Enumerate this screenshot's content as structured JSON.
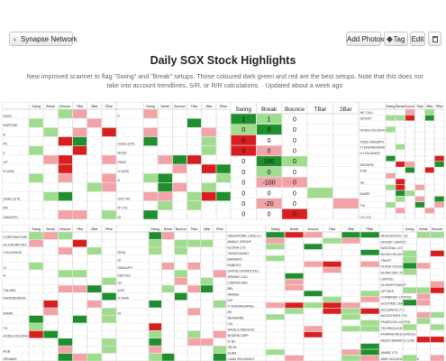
{
  "toolbar": {
    "back_label": "Synapse Network",
    "add_photos_label": "Add Photos",
    "tag_label": "Tag",
    "edit_label": "Edit"
  },
  "page": {
    "title": "Daily SGX Stock Highlights",
    "description": "New improved scanner to flag \"Swing\" and \"Break\" setups. Those coloured dark green and red are the best setups. Note that this does not take into account trendlines, S/R, or R/R calculations.  · Updated about a week ago"
  },
  "colors": {
    "dark_green": "#1f8f2e",
    "light_green": "#9fdc8e",
    "dark_red": "#d81f1f",
    "light_red": "#f2a3a8"
  },
  "collage": {
    "headers": [
      "Swing",
      "Break",
      "Bounce",
      "TBar",
      "2Bar",
      "PBar"
    ],
    "center_values": [
      [
        "1",
        "1",
        "0"
      ],
      [
        "0",
        "0",
        "0"
      ],
      [
        "0",
        "0",
        "0"
      ],
      [
        "0",
        "0",
        "0"
      ],
      [
        "0",
        "100",
        "0"
      ],
      [
        "0",
        "0",
        "0"
      ],
      [
        "0",
        "-100",
        "0"
      ],
      [
        "0",
        "0",
        "0"
      ],
      [
        "0",
        "-20",
        "0"
      ],
      [
        "0",
        "0",
        "0"
      ]
    ],
    "left_top_labels": [
      "PASS",
      "NWSTME",
      "D",
      "PC",
      "C",
      "UP",
      "IX ASIA",
      "",
      "",
      "(Index (STI)",
      "RN",
      "SINGAPO"
    ],
    "mid_top_labels": [
      "P",
      "",
      "",
      "(Index (STI)",
      "RCES",
      "PASS",
      "IX ASIA",
      "D",
      "",
      "SVO HO",
      "IP LTD.",
      "ID"
    ],
    "right_top_labels": [
      "NE CALL",
      "GROUP",
      "",
      "HONG HOLDING",
      "",
      "TEAD SINGAPO",
      "TI ENGINEERING",
      "H HOLDINGS",
      "",
      "DEEARN",
      "FOR",
      "",
      "SIL",
      "",
      "INARE",
      "",
      "TUI",
      "",
      "LS LTD."
    ],
    "left_bottom_labels": [
      "CORPORATION",
      "ES ENVIROTEC",
      "I HOLDINGS",
      "",
      "CI",
      "N",
      "",
      "TULAND",
      "ENGINEERING",
      "",
      "INARE",
      "",
      "TH",
      "HONG HOLDING",
      "",
      "HUB",
      "ZENMAS"
    ],
    "mid_bottom_labels": [
      "",
      "",
      "RING",
      "ID",
      "SINGAPO",
      "EROTEC",
      "UC",
      "AGE",
      "IX ASIA",
      "",
      "IG"
    ],
    "right_bottom_labels": [
      "SINGAPORE LAND & L",
      "AMALE GROUP",
      "ECONA LTD",
      "YANGZIJIANG",
      "BIMMANY",
      "EMBODY",
      "UNITED ENVIROTEC",
      "ARBINE CALL",
      "LIAMTALAND",
      "BEL",
      "ANIMAL",
      "IUP",
      "TI ENGINEERING",
      "IRI",
      "NEOMARE",
      "IZA",
      "WHOLD MEDICAL",
      "BODENCORP",
      "IV BC",
      "ZEON",
      "ALAM",
      "LAND HOLDINGS"
    ],
    "far_right_bottom_labels": [
      "RESOURCES LTD",
      "GROUP LIMITED",
      "NATIONAL LTD",
      "BOON HOLDINGS",
      "TRUST",
      "PLAND HOLDINGS",
      "NUPACOM LTD",
      "LIMITED",
      "JA INVESTMENT",
      "UPTHES",
      "COMBINEK LIMITED",
      "GOSTIME LIMITED",
      "HOLDINGS LTD",
      "INDUSTRIES LTD",
      "PHARCOS LIMITED",
      "TECHNOLOGIES LTD",
      "PHARMA RESOURCES",
      "INDEX BANKING.COM",
      "",
      "ANIME LTD",
      "AME HOLDINGS LIMITED"
    ]
  }
}
